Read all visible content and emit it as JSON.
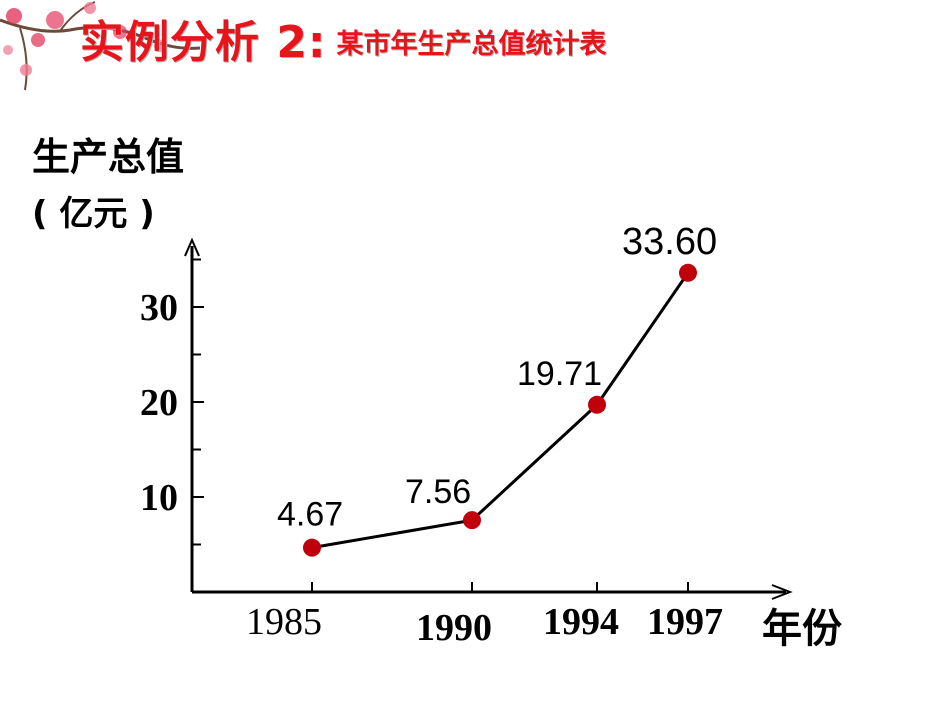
{
  "slide": {
    "title": "实例分析 2:",
    "subtitle": "某市年生产总值统计表"
  },
  "colors": {
    "title": "#e8141b",
    "point": "#c0000a",
    "line": "#000000",
    "blossom": "#e23a5e"
  },
  "chart_data": {
    "type": "line",
    "ylabel_line1": "生产总值",
    "ylabel_line2": "( 亿元 )",
    "xlabel": "年份",
    "categories": [
      "1985",
      "1990",
      "1994",
      "1997"
    ],
    "x": [
      1985,
      1990,
      1994,
      1997
    ],
    "values": [
      4.67,
      7.56,
      19.71,
      33.6
    ],
    "point_labels": [
      "4.67",
      "7.56",
      "19.71",
      "33.60"
    ],
    "yticks": [
      "10",
      "20",
      "30"
    ],
    "ytick_values": [
      10,
      20,
      30
    ],
    "ylim": [
      0,
      36
    ],
    "grid": false,
    "legend": "none"
  }
}
